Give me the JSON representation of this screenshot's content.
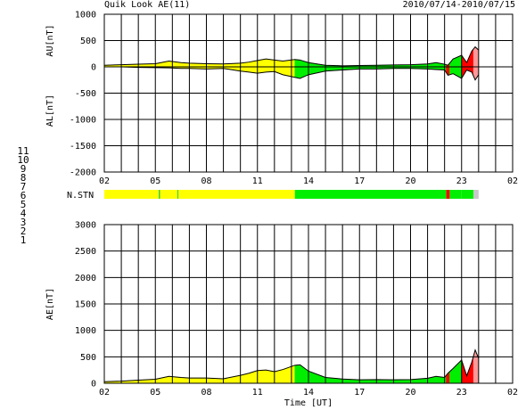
{
  "title": "Quik Look AE(11)",
  "date_range": "2010/07/14-2010/07/15",
  "colors": {
    "yellow": "#ffff00",
    "green": "#00ee00",
    "red": "#ff0000",
    "light_gray": "#c8c8c8",
    "pink": "#ff9999",
    "grid": "#000000"
  },
  "legend": [
    {
      "label": "11",
      "color": "#00e0e0"
    },
    {
      "label": "10",
      "color": "#ff00ff"
    },
    {
      "label": "9",
      "color": "#2020ff"
    },
    {
      "label": "8",
      "color": "#ffff80"
    },
    {
      "label": "7",
      "color": "#33cc33"
    },
    {
      "label": "6",
      "color": "#ff0000"
    },
    {
      "label": "5",
      "color": "#bbbbbb"
    },
    {
      "label": "4",
      "color": "#c0c0c0"
    },
    {
      "label": "3",
      "color": "#00bbbb"
    },
    {
      "label": "2",
      "color": "#cc00cc"
    },
    {
      "label": "1",
      "color": "#2020dd"
    }
  ],
  "x_ticks": [
    "02",
    "05",
    "08",
    "11",
    "14",
    "17",
    "20",
    "23",
    "02"
  ],
  "stn_label": "N.STN",
  "chart_data": [
    {
      "type": "area",
      "ylabel_top": "AU[nT]",
      "ylabel_bottom": "AL[nT]",
      "ylim": [
        -2000,
        1000
      ],
      "y_ticks": [
        1000,
        500,
        0,
        -500,
        -1000,
        -1500,
        -2000
      ],
      "x_ticks": [
        "02",
        "05",
        "08",
        "11",
        "14",
        "17",
        "20",
        "23",
        "02"
      ],
      "xlim_hours": [
        2,
        26
      ],
      "grid": true,
      "series": [
        {
          "x": [
            2,
            3,
            4,
            5,
            5.8,
            6.5,
            7,
            8,
            9,
            10,
            10.5,
            11,
            11.5,
            12,
            12.5,
            13.2,
            13.5,
            14,
            15,
            16,
            17,
            18,
            19,
            20,
            21,
            21.5,
            22,
            22.2,
            22.5,
            23,
            23.3,
            23.6,
            23.8,
            24
          ],
          "values": [
            30,
            40,
            50,
            60,
            110,
            80,
            70,
            60,
            55,
            70,
            90,
            120,
            150,
            130,
            110,
            140,
            130,
            80,
            30,
            20,
            25,
            30,
            35,
            40,
            55,
            80,
            50,
            30,
            150,
            220,
            80,
            300,
            380,
            320
          ]
        },
        {
          "x": [
            2,
            3,
            4,
            5,
            5.8,
            6.5,
            7,
            8,
            9,
            10,
            10.5,
            11,
            11.5,
            12,
            12.5,
            13.2,
            13.5,
            14,
            15,
            16,
            17,
            18,
            19,
            20,
            21,
            21.5,
            22,
            22.2,
            22.5,
            23,
            23.3,
            23.6,
            23.8,
            24
          ],
          "values": [
            0,
            0,
            -10,
            -15,
            -20,
            -30,
            -30,
            -40,
            -30,
            -80,
            -100,
            -120,
            -100,
            -90,
            -150,
            -200,
            -220,
            -150,
            -80,
            -60,
            -40,
            -40,
            -30,
            -30,
            -40,
            -50,
            -60,
            -160,
            -130,
            -220,
            -60,
            -100,
            -250,
            -150
          ]
        }
      ],
      "fill_segments": [
        {
          "from": 2,
          "to": 13.2,
          "color": "#ffff00"
        },
        {
          "from": 13.2,
          "to": 22.1,
          "color": "#00ee00"
        },
        {
          "from": 22.1,
          "to": 22.3,
          "color": "#ff0000"
        },
        {
          "from": 22.3,
          "to": 23.0,
          "color": "#00ee00"
        },
        {
          "from": 23.0,
          "to": 23.7,
          "color": "#ff0000"
        },
        {
          "from": 23.7,
          "to": 24.0,
          "color": "#ff9999"
        }
      ]
    },
    {
      "type": "area",
      "ylabel": "AE[nT]",
      "xlabel": "Time [UT]",
      "ylim": [
        0,
        3000
      ],
      "y_ticks": [
        3000,
        2500,
        2000,
        1500,
        1000,
        500,
        0
      ],
      "x_ticks": [
        "02",
        "05",
        "08",
        "11",
        "14",
        "17",
        "20",
        "23",
        "02"
      ],
      "xlim_hours": [
        2,
        26
      ],
      "grid": true,
      "series": [
        {
          "x": [
            2,
            3,
            4,
            5,
            5.8,
            6.5,
            7,
            8,
            9,
            10,
            10.5,
            11,
            11.5,
            12,
            12.5,
            13.2,
            13.5,
            14,
            15,
            16,
            17,
            18,
            19,
            20,
            21,
            21.5,
            22,
            22.2,
            22.5,
            23,
            23.3,
            23.6,
            23.8,
            24
          ],
          "values": [
            30,
            40,
            60,
            75,
            130,
            110,
            100,
            100,
            85,
            150,
            190,
            240,
            250,
            220,
            260,
            340,
            350,
            230,
            110,
            80,
            65,
            70,
            65,
            70,
            95,
            130,
            110,
            190,
            280,
            440,
            140,
            400,
            630,
            470
          ]
        }
      ],
      "fill_segments": [
        {
          "from": 2,
          "to": 13.2,
          "color": "#ffff00"
        },
        {
          "from": 13.2,
          "to": 22.1,
          "color": "#00ee00"
        },
        {
          "from": 22.1,
          "to": 22.3,
          "color": "#ff0000"
        },
        {
          "from": 22.3,
          "to": 23.0,
          "color": "#00ee00"
        },
        {
          "from": 23.0,
          "to": 23.7,
          "color": "#ff0000"
        },
        {
          "from": 23.7,
          "to": 24.0,
          "color": "#ff9999"
        }
      ]
    }
  ],
  "stn_segments": [
    {
      "from": 2,
      "to": 5.2,
      "color": "#ffff00"
    },
    {
      "from": 5.2,
      "to": 5.28,
      "color": "#33cc33"
    },
    {
      "from": 5.28,
      "to": 6.3,
      "color": "#ffff00"
    },
    {
      "from": 6.3,
      "to": 6.36,
      "color": "#33cc33"
    },
    {
      "from": 6.36,
      "to": 13.2,
      "color": "#ffff00"
    },
    {
      "from": 13.2,
      "to": 22.1,
      "color": "#00ee00"
    },
    {
      "from": 22.1,
      "to": 22.3,
      "color": "#ff0000"
    },
    {
      "from": 22.3,
      "to": 23.0,
      "color": "#00ee00"
    },
    {
      "from": 23.0,
      "to": 23.7,
      "color": "#00ee00"
    },
    {
      "from": 23.7,
      "to": 24.0,
      "color": "#c8c8c8"
    }
  ]
}
